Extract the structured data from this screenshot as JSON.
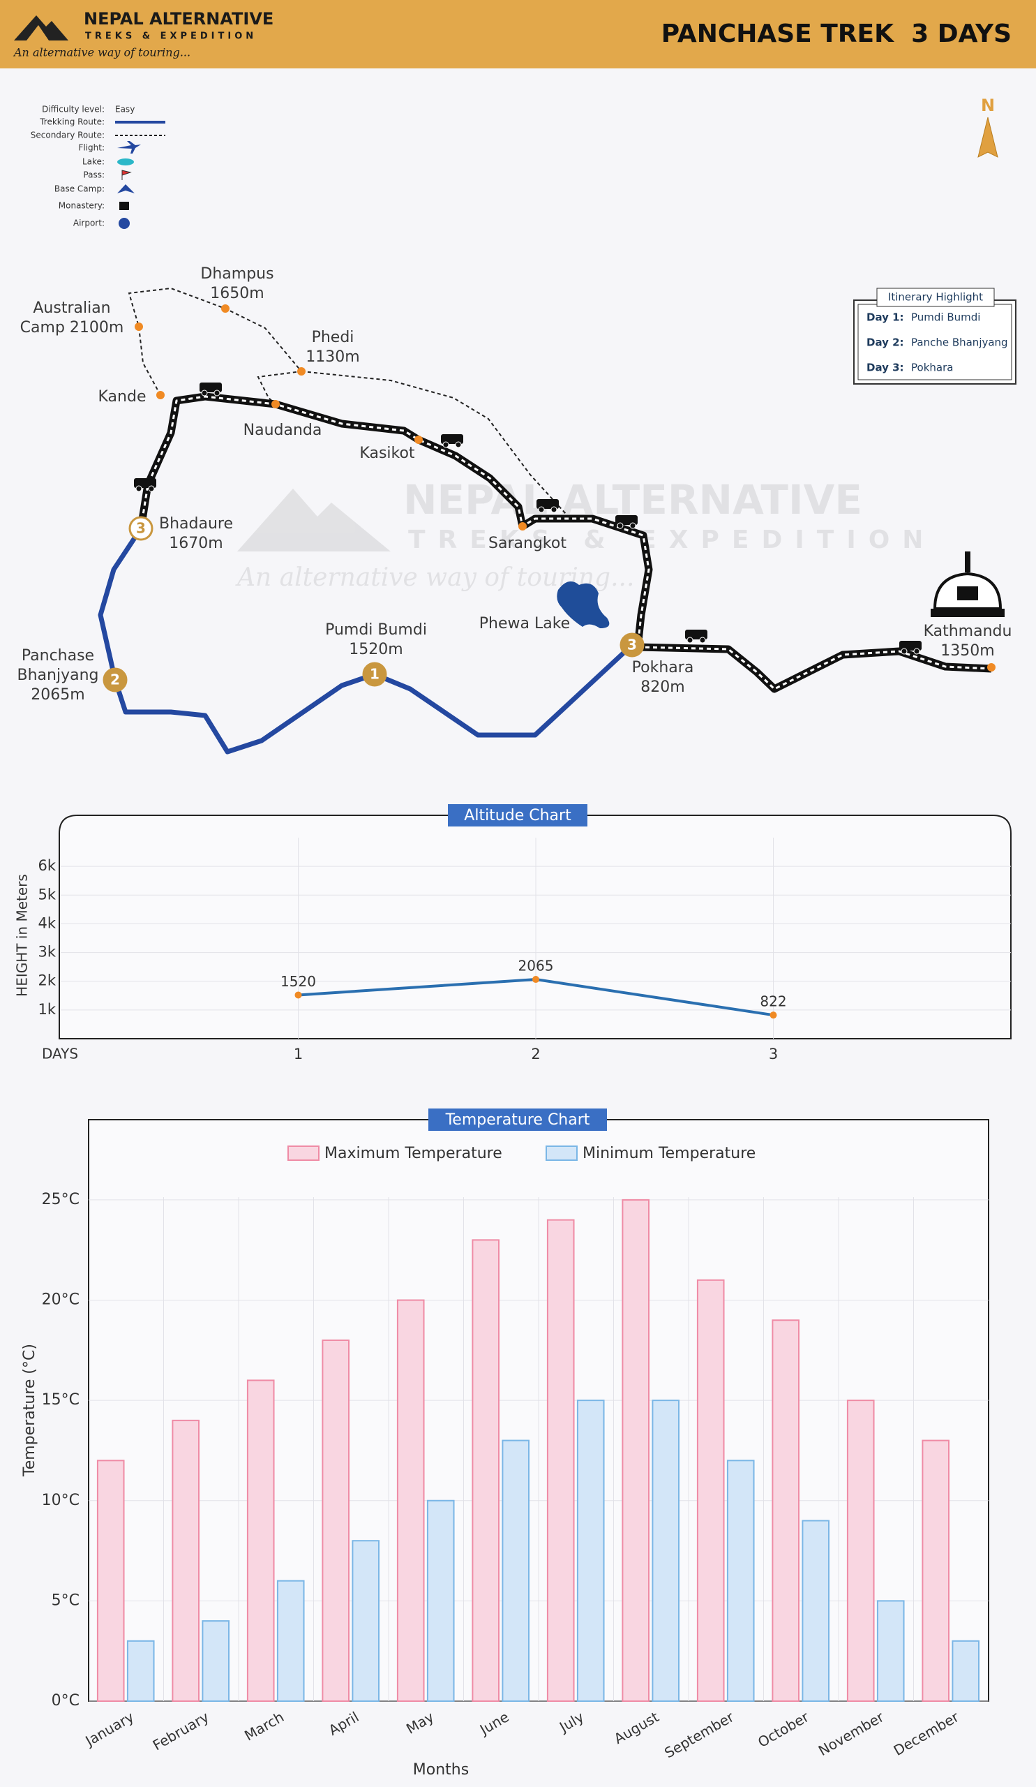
{
  "header": {
    "brand": "NEPAL ALTERNATIVE",
    "subbrand": "TREKS & EXPEDITION",
    "tagline": "An alternative way of touring...",
    "title": "PANCHASE TREK  3 DAYS"
  },
  "legend": {
    "items": [
      {
        "label": "Difficulty level:",
        "value": "Easy"
      },
      {
        "label": "Trekking Route:"
      },
      {
        "label": "Secondary Route:"
      },
      {
        "label": "Flight:"
      },
      {
        "label": "Lake:"
      },
      {
        "label": "Pass:"
      },
      {
        "label": "Base Camp:"
      },
      {
        "label": "Monastery:"
      },
      {
        "label": "Airport:"
      }
    ]
  },
  "compass": "N",
  "map": {
    "places": [
      {
        "lines": [
          "Australian",
          "Camp 2100m"
        ]
      },
      {
        "lines": [
          "Dhampus",
          "1650m"
        ]
      },
      {
        "lines": [
          "Phedi",
          "1130m"
        ]
      },
      {
        "lines": [
          "Kande"
        ]
      },
      {
        "lines": [
          "Naudanda"
        ]
      },
      {
        "lines": [
          "Kasikot"
        ]
      },
      {
        "lines": [
          "Bhadaure",
          "1670m"
        ],
        "marker": "3"
      },
      {
        "lines": [
          "Sarangkot"
        ]
      },
      {
        "lines": [
          "Pumdi Bumdi",
          "1520m"
        ],
        "marker": "1"
      },
      {
        "lines": [
          "Phewa Lake"
        ]
      },
      {
        "lines": [
          "Panchase",
          "Bhanjyang",
          "2065m"
        ],
        "marker": "2"
      },
      {
        "lines": [
          "Pokhara",
          "820m"
        ],
        "marker": "3"
      },
      {
        "lines": [
          "Kathmandu",
          "1350m"
        ]
      }
    ]
  },
  "itinerary": {
    "title": "Itinerary Highlight",
    "days": [
      {
        "day": "Day 1:",
        "place": "Pumdi Bumdi"
      },
      {
        "day": "Day 2:",
        "place": "Panche Bhanjyang"
      },
      {
        "day": "Day 3:",
        "place": "Pokhara"
      }
    ]
  },
  "chart_data": [
    {
      "type": "line",
      "title": "Altitude Chart",
      "x_label": "DAYS",
      "y_label": "HEIGHT in Meters",
      "x": [
        1,
        2,
        3
      ],
      "values": [
        1520,
        2065,
        822
      ],
      "color": "#2a6fb0",
      "point_color": "#f08a24",
      "xlim": [
        0,
        4
      ],
      "xticks": [
        1,
        2,
        3
      ],
      "ylim": [
        0,
        7000
      ],
      "yticks": [
        {
          "value": 1000,
          "label": "1k"
        },
        {
          "value": 2000,
          "label": "2k"
        },
        {
          "value": 3000,
          "label": "3k"
        },
        {
          "value": 4000,
          "label": "4k"
        },
        {
          "value": 5000,
          "label": "5k"
        },
        {
          "value": 6000,
          "label": "6k"
        }
      ],
      "grid": true
    },
    {
      "type": "bar",
      "title": "Temperature Chart",
      "x_label": "Months",
      "y_label": "Temperature (°C)",
      "categories": [
        "January",
        "February",
        "March",
        "April",
        "May",
        "June",
        "July",
        "August",
        "September",
        "October",
        "November",
        "December"
      ],
      "series": [
        {
          "name": "Maximum Temperature",
          "color": "#f9d6e1",
          "border_color": "#ef8ba5",
          "values": [
            12,
            14,
            16,
            18,
            20,
            23,
            24,
            25,
            21,
            19,
            15,
            13
          ]
        },
        {
          "name": "Minimum Temperature",
          "color": "#d3e6f8",
          "border_color": "#7ab6e6",
          "values": [
            3,
            4,
            6,
            8,
            10,
            13,
            15,
            15,
            12,
            9,
            5,
            3
          ]
        }
      ],
      "ylim": [
        0,
        29
      ],
      "yticks": [
        {
          "value": 0,
          "label": "0°C"
        },
        {
          "value": 5,
          "label": "5°C"
        },
        {
          "value": 10,
          "label": "10°C"
        },
        {
          "value": 15,
          "label": "15°C"
        },
        {
          "value": 20,
          "label": "20°C"
        },
        {
          "value": 25,
          "label": "25°C"
        }
      ],
      "grid": true
    }
  ]
}
